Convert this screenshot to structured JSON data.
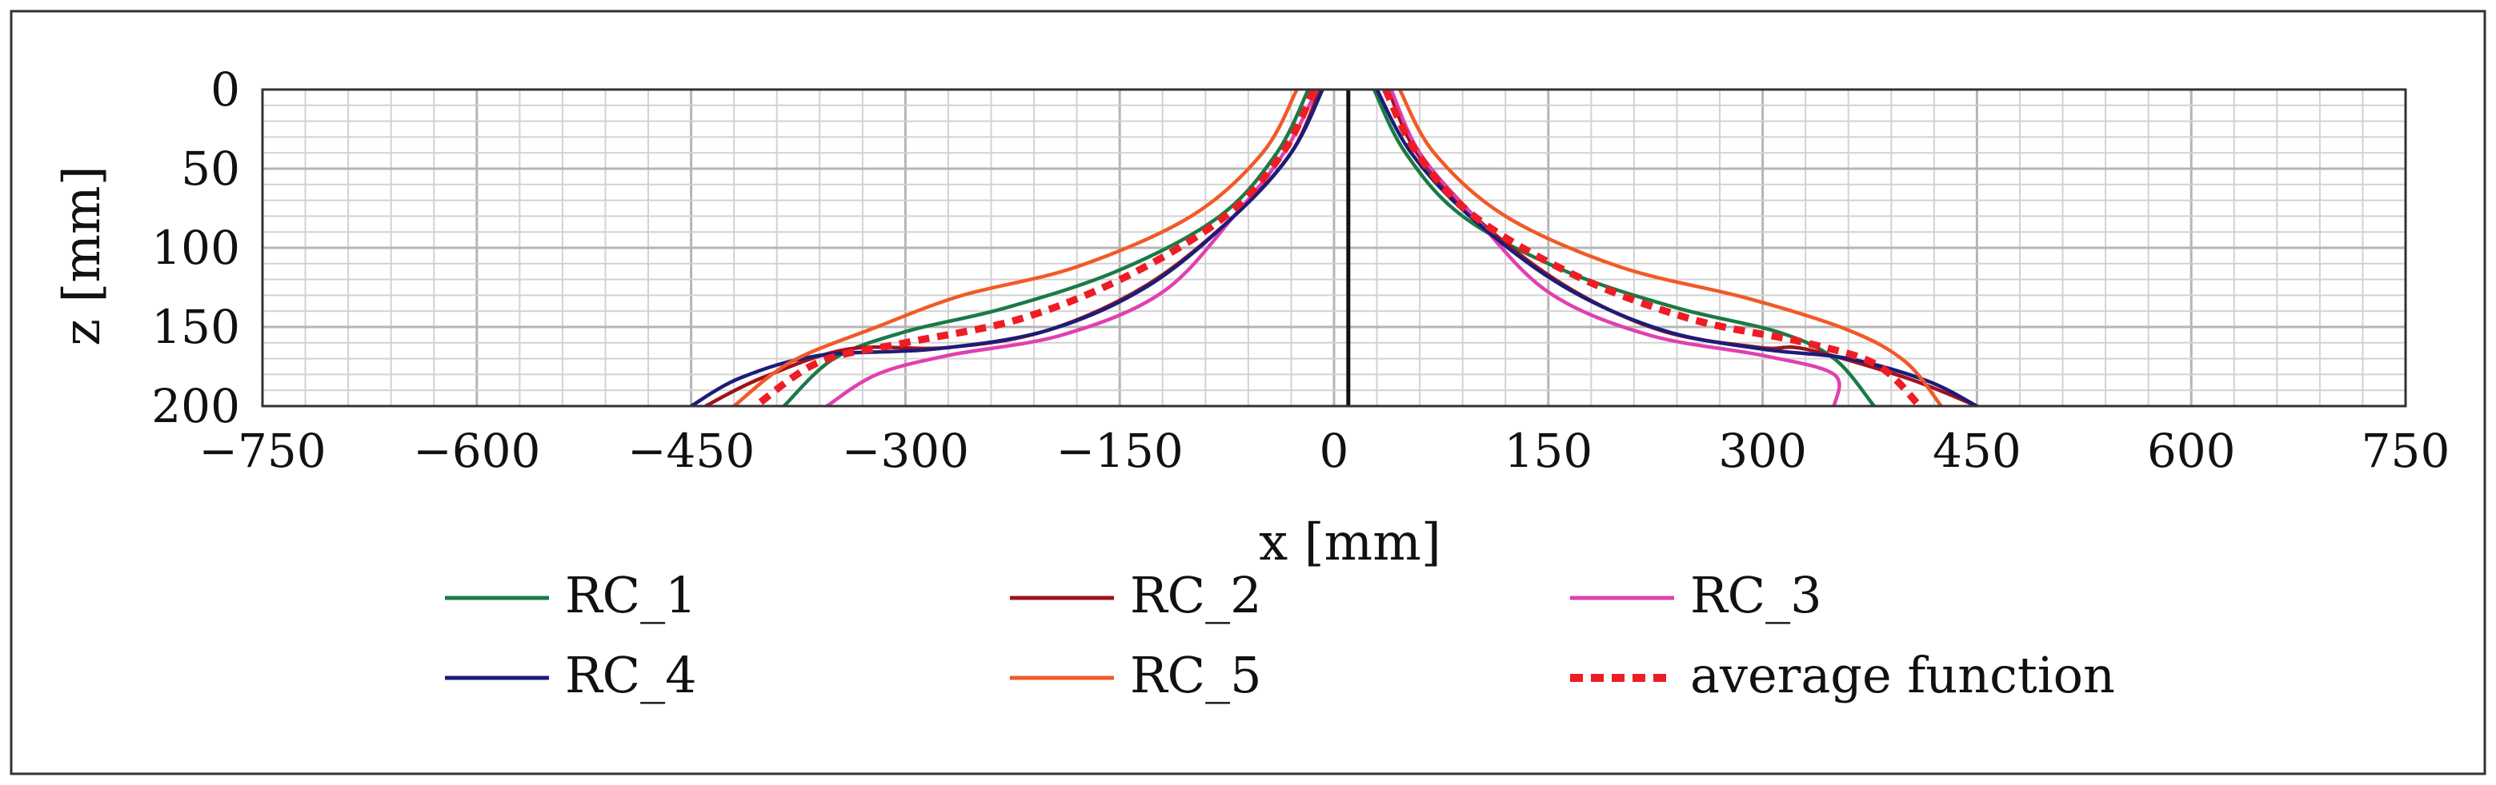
{
  "chart_data": {
    "type": "line",
    "title": "",
    "xlabel": "x [mm]",
    "ylabel": "z [mm]",
    "xlim": [
      -750,
      750
    ],
    "ylim": [
      0,
      200
    ],
    "y_inverted": true,
    "grid": true,
    "xticks": [
      -750,
      -600,
      -450,
      -300,
      -150,
      0,
      150,
      300,
      450,
      600,
      750
    ],
    "xtick_labels": [
      "−750",
      "−600",
      "−450",
      "−300",
      "−150",
      "0",
      "150",
      "300",
      "450",
      "600",
      "750"
    ],
    "yticks": [
      0,
      50,
      100,
      150,
      200
    ],
    "ytick_labels": [
      "0",
      "50",
      "100",
      "150",
      "200"
    ],
    "legend_position": "bottom",
    "center_line_x": 10,
    "series": [
      {
        "name": "RC_1",
        "color": "#1b7a45",
        "dashed": false,
        "points": [
          [
            -18,
            0
          ],
          [
            -40,
            40
          ],
          [
            -80,
            80
          ],
          [
            -150,
            114
          ],
          [
            -230,
            138
          ],
          [
            -300,
            153
          ],
          [
            -350,
            170
          ],
          [
            -385,
            200
          ],
          [
            -385,
            200
          ]
        ],
        "points_right": [
          [
            28,
            0
          ],
          [
            50,
            40
          ],
          [
            90,
            80
          ],
          [
            160,
            114
          ],
          [
            240,
            138
          ],
          [
            310,
            153
          ],
          [
            350,
            170
          ],
          [
            378,
            200
          ]
        ]
      },
      {
        "name": "RC_2",
        "color": "#a0131c",
        "dashed": false,
        "points": [
          [
            -10,
            0
          ],
          [
            -30,
            40
          ],
          [
            -70,
            80
          ],
          [
            -130,
            123
          ],
          [
            -200,
            152
          ],
          [
            -270,
            163
          ],
          [
            -340,
            164
          ],
          [
            -400,
            182
          ],
          [
            -440,
            200
          ]
        ],
        "points_right": [
          [
            38,
            0
          ],
          [
            58,
            40
          ],
          [
            98,
            80
          ],
          [
            160,
            123
          ],
          [
            228,
            152
          ],
          [
            298,
            163
          ],
          [
            330,
            164
          ],
          [
            400,
            182
          ],
          [
            450,
            200
          ]
        ]
      },
      {
        "name": "RC_3",
        "color": "#e040b0",
        "dashed": false,
        "points": [
          [
            -12,
            0
          ],
          [
            -35,
            40
          ],
          [
            -70,
            80
          ],
          [
            -120,
            128
          ],
          [
            -190,
            155
          ],
          [
            -270,
            168
          ],
          [
            -320,
            180
          ],
          [
            -355,
            200
          ]
        ],
        "points_right": [
          [
            40,
            0
          ],
          [
            60,
            40
          ],
          [
            98,
            80
          ],
          [
            150,
            128
          ],
          [
            220,
            155
          ],
          [
            300,
            168
          ],
          [
            350,
            180
          ],
          [
            350,
            200
          ]
        ]
      },
      {
        "name": "RC_4",
        "color": "#1c1c7a",
        "dashed": false,
        "points": [
          [
            -8,
            0
          ],
          [
            -30,
            40
          ],
          [
            -70,
            80
          ],
          [
            -130,
            124
          ],
          [
            -200,
            152
          ],
          [
            -280,
            164
          ],
          [
            -360,
            168
          ],
          [
            -415,
            182
          ],
          [
            -450,
            200
          ]
        ],
        "points_right": [
          [
            30,
            0
          ],
          [
            54,
            40
          ],
          [
            95,
            80
          ],
          [
            160,
            124
          ],
          [
            230,
            152
          ],
          [
            300,
            164
          ],
          [
            360,
            170
          ],
          [
            415,
            184
          ],
          [
            450,
            200
          ]
        ]
      },
      {
        "name": "RC_5",
        "color": "#f05a28",
        "dashed": false,
        "points": [
          [
            -26,
            0
          ],
          [
            -50,
            40
          ],
          [
            -100,
            80
          ],
          [
            -180,
            112
          ],
          [
            -260,
            130
          ],
          [
            -320,
            150
          ],
          [
            -380,
            172
          ],
          [
            -420,
            200
          ]
        ],
        "points_right": [
          [
            46,
            0
          ],
          [
            70,
            40
          ],
          [
            120,
            80
          ],
          [
            200,
            112
          ],
          [
            290,
            132
          ],
          [
            360,
            152
          ],
          [
            400,
            172
          ],
          [
            425,
            200
          ]
        ]
      },
      {
        "name": "average function",
        "color": "#ee1c24",
        "dashed": true,
        "points": [
          [
            -14,
            0
          ],
          [
            -36,
            40
          ],
          [
            -76,
            80
          ],
          [
            -145,
            118
          ],
          [
            -220,
            145
          ],
          [
            -300,
            160
          ],
          [
            -360,
            172
          ],
          [
            -405,
            200
          ]
        ],
        "points_right": [
          [
            36,
            0
          ],
          [
            58,
            40
          ],
          [
            98,
            80
          ],
          [
            170,
            118
          ],
          [
            250,
            145
          ],
          [
            330,
            160
          ],
          [
            380,
            174
          ],
          [
            410,
            200
          ]
        ]
      }
    ]
  }
}
